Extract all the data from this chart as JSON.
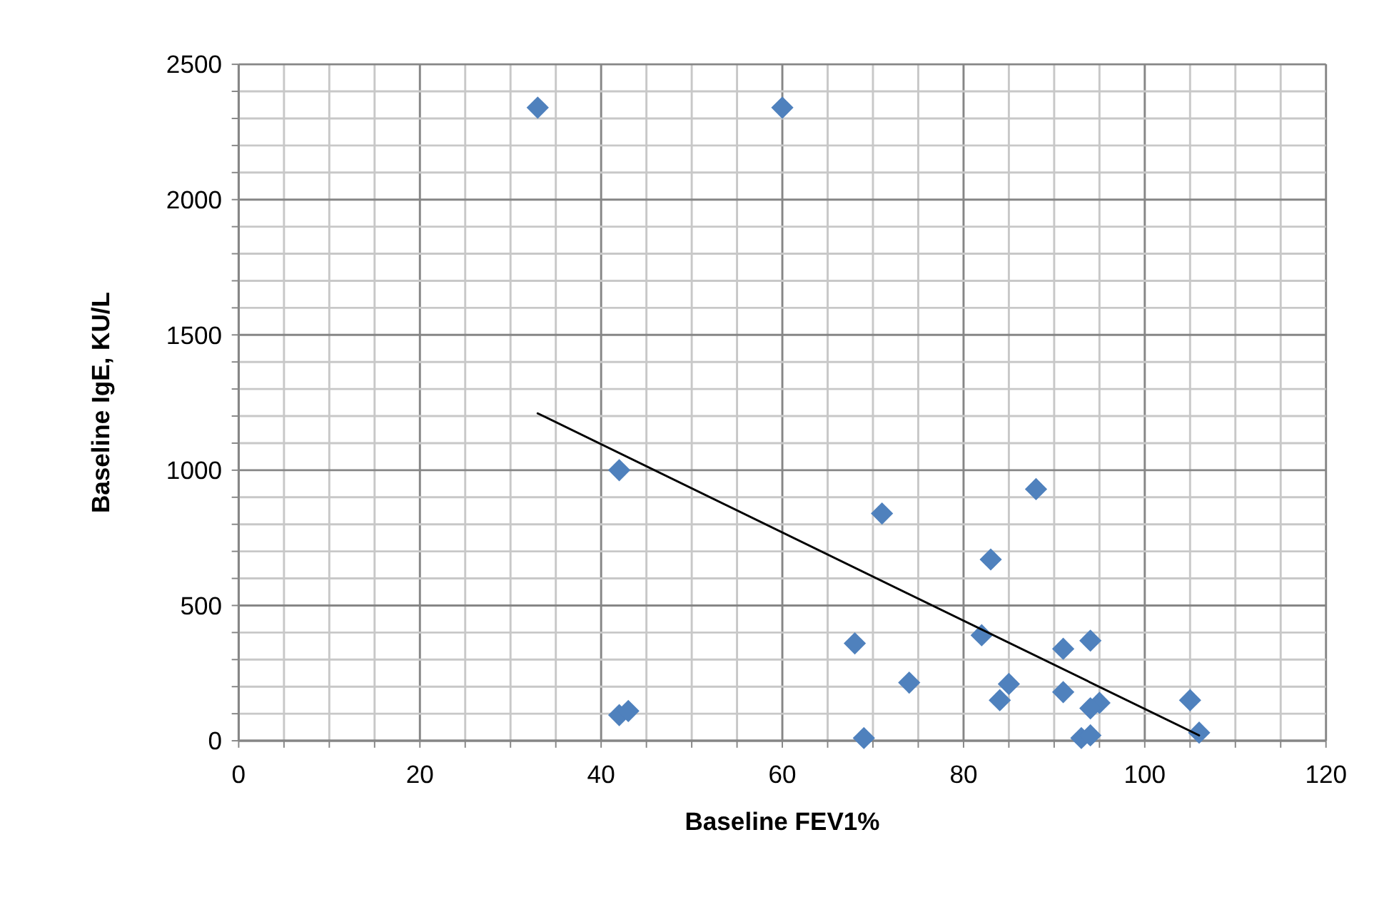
{
  "chart_data": {
    "type": "scatter",
    "xlabel": "Baseline FEV1%",
    "ylabel": "Baseline IgE, KU/L",
    "xlim": [
      0,
      120
    ],
    "ylim": [
      0,
      2500
    ],
    "xticks": [
      0,
      {
        "value": 5,
        "label": null
      },
      {
        "value": 10,
        "label": null
      },
      {
        "value": 15,
        "label": null
      },
      20,
      {
        "value": 25,
        "label": null
      },
      {
        "value": 30,
        "label": null
      },
      {
        "value": 35,
        "label": null
      },
      40,
      {
        "value": 45,
        "label": null
      },
      {
        "value": 50,
        "label": null
      },
      {
        "value": 55,
        "label": null
      },
      60,
      {
        "value": 65,
        "label": null
      },
      {
        "value": 70,
        "label": null
      },
      {
        "value": 75,
        "label": null
      },
      80,
      {
        "value": 85,
        "label": null
      },
      {
        "value": 90,
        "label": null
      },
      {
        "value": 95,
        "label": null
      },
      100,
      {
        "value": 105,
        "label": null
      },
      {
        "value": 110,
        "label": null
      },
      {
        "value": 115,
        "label": null
      },
      120
    ],
    "yticks": [
      0,
      {
        "value": 100,
        "label": null
      },
      {
        "value": 200,
        "label": null
      },
      {
        "value": 300,
        "label": null
      },
      {
        "value": 400,
        "label": null
      },
      500,
      {
        "value": 600,
        "label": null
      },
      {
        "value": 700,
        "label": null
      },
      {
        "value": 800,
        "label": null
      },
      {
        "value": 900,
        "label": null
      },
      1000,
      {
        "value": 1100,
        "label": null
      },
      {
        "value": 1200,
        "label": null
      },
      {
        "value": 1300,
        "label": null
      },
      {
        "value": 1400,
        "label": null
      },
      1500,
      {
        "value": 1600,
        "label": null
      },
      {
        "value": 1700,
        "label": null
      },
      {
        "value": 1800,
        "label": null
      },
      {
        "value": 1900,
        "label": null
      },
      2000,
      {
        "value": 2100,
        "label": null
      },
      {
        "value": 2200,
        "label": null
      },
      {
        "value": 2300,
        "label": null
      },
      {
        "value": 2400,
        "label": null
      },
      2500
    ],
    "grid": true,
    "series": [
      {
        "color": "#4f81bd",
        "marker": "diamond",
        "x": [
          33,
          60,
          42,
          71,
          88,
          83,
          82,
          68,
          94,
          91,
          74,
          85,
          84,
          91,
          95,
          94,
          93,
          94,
          42,
          43,
          69,
          105,
          106
        ],
        "values": [
          2340,
          2340,
          1000,
          840,
          930,
          670,
          390,
          360,
          370,
          340,
          215,
          210,
          150,
          180,
          140,
          120,
          10,
          20,
          95,
          110,
          10,
          150,
          30
        ]
      },
      {
        "type": "line",
        "color": "#000000",
        "marker": "none",
        "line_style": "solid",
        "x": [
          33,
          106
        ],
        "values": [
          1210,
          20
        ]
      }
    ]
  }
}
